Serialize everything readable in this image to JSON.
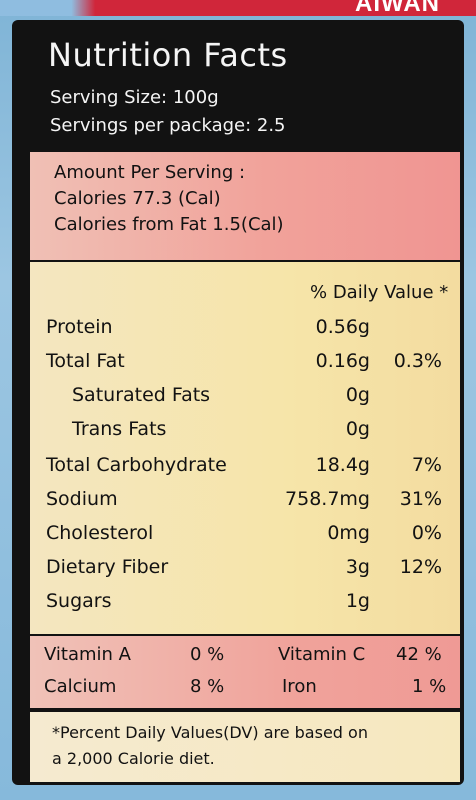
{
  "label": {
    "title": "Nutrition Facts",
    "serving_size": "Serving Size: 100g",
    "servings_per_package": "Servings per package: 2.5"
  },
  "amount": {
    "heading": "Amount Per Serving :",
    "calories": "Calories 77.3 (Cal)",
    "calories_from_fat": "Calories from Fat 1.5(Cal)"
  },
  "dv_header": "% Daily Value *",
  "nutrients": [
    {
      "name": "Protein",
      "amount": "0.56g",
      "dv": ""
    },
    {
      "name": "Total Fat",
      "amount": "0.16g",
      "dv": "0.3%"
    },
    {
      "name": "Saturated Fats",
      "amount": "0g",
      "dv": ""
    },
    {
      "name": "Trans Fats",
      "amount": "0g",
      "dv": ""
    },
    {
      "name": "Total Carbohydrate",
      "amount": "18.4g",
      "dv": "7%"
    },
    {
      "name": "Sodium",
      "amount": "758.7mg",
      "dv": "31%"
    },
    {
      "name": "Cholesterol",
      "amount": "0mg",
      "dv": "0%"
    },
    {
      "name": "Dietary Fiber",
      "amount": "3g",
      "dv": "12%"
    },
    {
      "name": "Sugars",
      "amount": "1g",
      "dv": ""
    }
  ],
  "vitamins": {
    "vitamin_a_label": "Vitamin A",
    "vitamin_a_value": "0 %",
    "vitamin_c_label": "Vitamin C",
    "vitamin_c_value": "42 %",
    "calcium_label": "Calcium",
    "calcium_value": "8 %",
    "iron_label": "Iron",
    "iron_value": "1 %"
  },
  "footnote": {
    "line1": "*Percent Daily Values(DV) are based on",
    "line2": "a 2,000 Calorie diet."
  },
  "package": {
    "brand_fragment": "AIWAN"
  },
  "colors": {
    "label_background": "#121212",
    "amount_panel": "#f1a29a",
    "nutrient_panel": "#f6e5a9",
    "package_red": "#d0263a",
    "package_blue": "#8fbde0"
  }
}
